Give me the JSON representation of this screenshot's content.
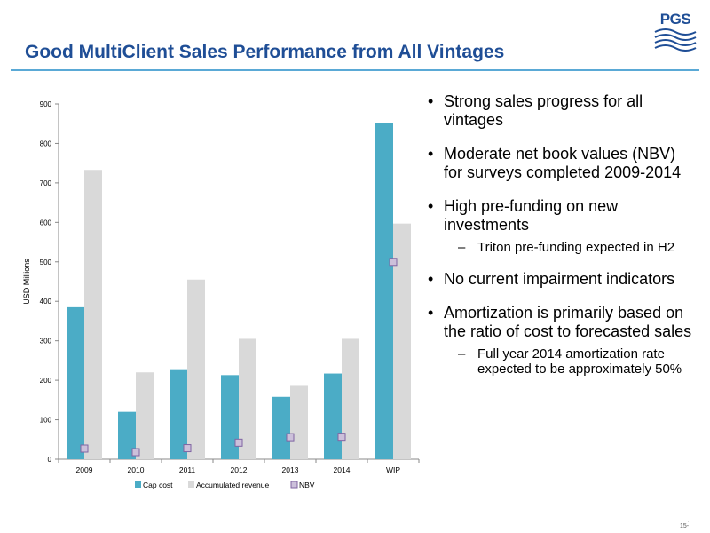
{
  "slide": {
    "title": "Good MultiClient Sales Performance from All Vintages",
    "logo_text": "PGS",
    "page_number": "15-",
    "page_dot": ","
  },
  "colors": {
    "title": "#1f4e96",
    "rule": "#5aa9d6",
    "cap_cost": "#4bacc6",
    "accumulated_revenue": "#d9d9d9",
    "nbv_fill": "#ccc0da",
    "nbv_stroke": "#8064a2"
  },
  "bullets": [
    {
      "text": "Strong sales progress for all vintages"
    },
    {
      "text": "Moderate net book values (NBV) for surveys completed 2009-2014"
    },
    {
      "text": "High pre-funding on new investments",
      "sub": [
        "Triton pre-funding expected in H2"
      ]
    },
    {
      "text": "No current impairment indicators"
    },
    {
      "text": "Amortization is primarily based on the ratio of cost to forecasted sales",
      "sub": [
        "Full year 2014 amortization rate expected to be approximately 50%"
      ]
    }
  ],
  "chart_data": {
    "type": "bar",
    "title": "",
    "xlabel": "",
    "ylabel": "USD Millions",
    "ylim": [
      0,
      900
    ],
    "yticks": [
      0,
      100,
      200,
      300,
      400,
      500,
      600,
      700,
      800,
      900
    ],
    "categories": [
      "2009",
      "2010",
      "2011",
      "2012",
      "2013",
      "2014",
      "WIP"
    ],
    "series": [
      {
        "name": "Cap cost",
        "type": "bar",
        "values": [
          385,
          120,
          228,
          213,
          158,
          217,
          852
        ]
      },
      {
        "name": "Accumulated revenue",
        "type": "bar",
        "values": [
          733,
          220,
          455,
          305,
          188,
          305,
          597
        ]
      },
      {
        "name": "NBV",
        "type": "marker",
        "values": [
          27,
          18,
          28,
          42,
          56,
          57,
          500
        ]
      }
    ],
    "legend_position": "bottom",
    "grid": false
  }
}
